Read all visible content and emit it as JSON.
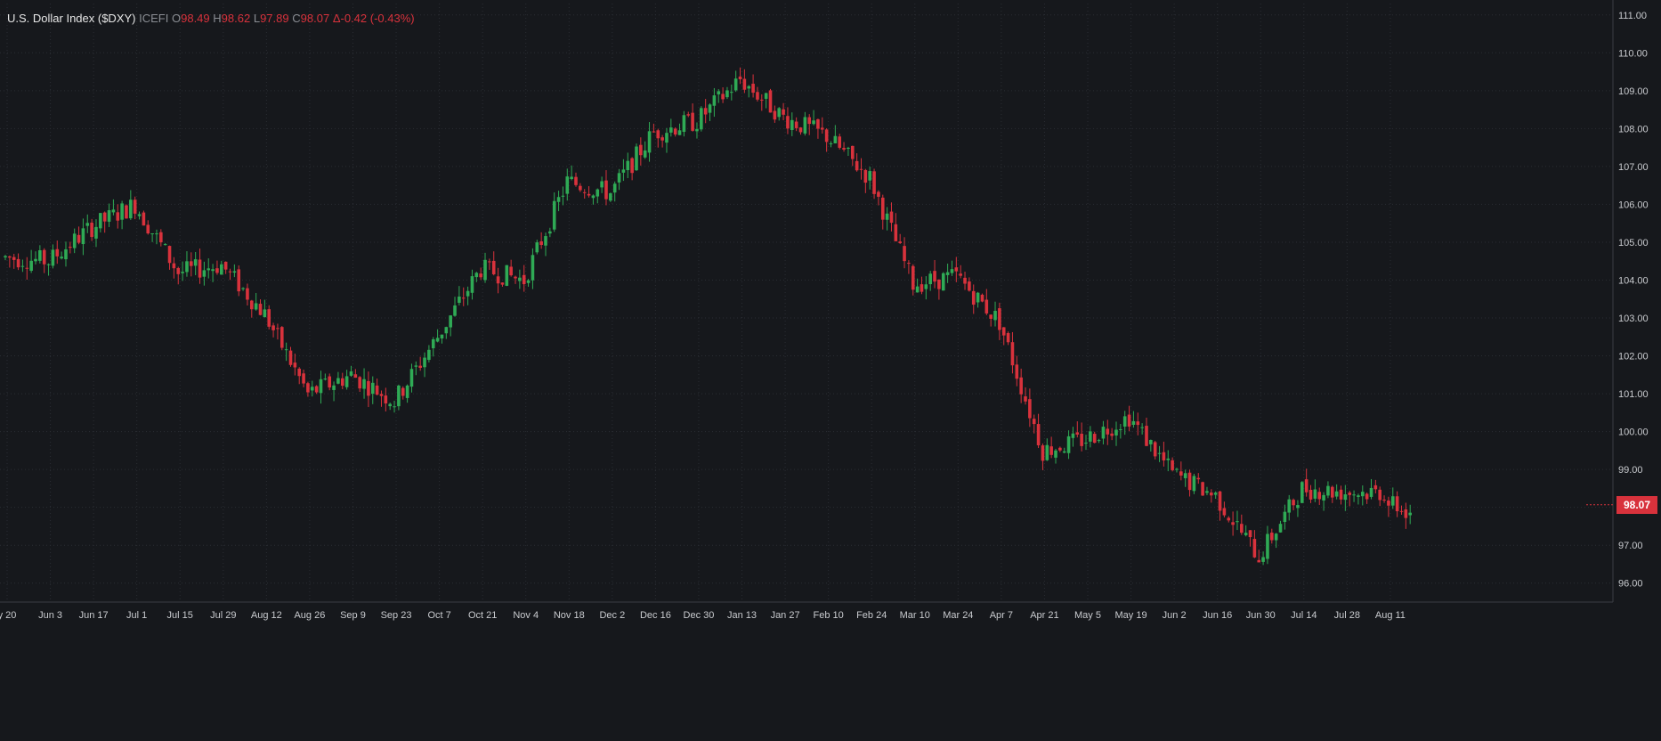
{
  "header": {
    "title": "U.S. Dollar Index ($DXY)",
    "source": "ICEFI",
    "open_label": "O",
    "open": "98.49",
    "high_label": "H",
    "high": "98.62",
    "low_label": "L",
    "low": "97.89",
    "close_label": "C",
    "close": "98.07",
    "change": "Δ-0.42 (-0.43%)"
  },
  "last_price_label": "98.07",
  "colors": {
    "background": "#16181c",
    "up": "#2faa55",
    "down": "#d8323c",
    "grid": "#2a2d33",
    "axis_text": "#c9cbcf",
    "last_price": "#d8323c"
  },
  "chart_data": {
    "type": "candlestick",
    "grid": true,
    "y_ticks": [
      "96.00",
      "97.00",
      "98.00",
      "99.00",
      "100.00",
      "101.00",
      "102.00",
      "103.00",
      "104.00",
      "105.00",
      "106.00",
      "107.00",
      "108.00",
      "109.00",
      "110.00",
      "111.00"
    ],
    "y_range": [
      95.5,
      111.3
    ],
    "x_ticks": [
      "y 20",
      "Jun 3",
      "Jun 17",
      "Jul 1",
      "Jul 15",
      "Jul 29",
      "Aug 12",
      "Aug 26",
      "Sep 9",
      "Sep 23",
      "Oct 7",
      "Oct 21",
      "Nov 4",
      "Nov 18",
      "Dec 2",
      "Dec 16",
      "Dec 30",
      "Jan 13",
      "Jan 27",
      "Feb 10",
      "Feb 24",
      "Mar 10",
      "Mar 24",
      "Apr 7",
      "Apr 21",
      "May 5",
      "May 19",
      "Jun 2",
      "Jun 16",
      "Jun 30",
      "Jul 14",
      "Jul 28",
      "Aug 11"
    ],
    "trading_days_per_label": 10,
    "close_path_by_label": [
      104.6,
      104.5,
      105.4,
      106.0,
      104.2,
      104.4,
      103.1,
      101.0,
      101.5,
      100.8,
      102.5,
      104.3,
      104.0,
      106.6,
      106.3,
      107.9,
      108.2,
      109.3,
      108.3,
      107.8,
      106.7,
      103.9,
      104.1,
      102.9,
      99.5,
      99.8,
      100.4,
      98.9,
      98.3,
      96.7,
      98.5,
      98.4,
      98.4
    ],
    "last_close": 98.07
  }
}
